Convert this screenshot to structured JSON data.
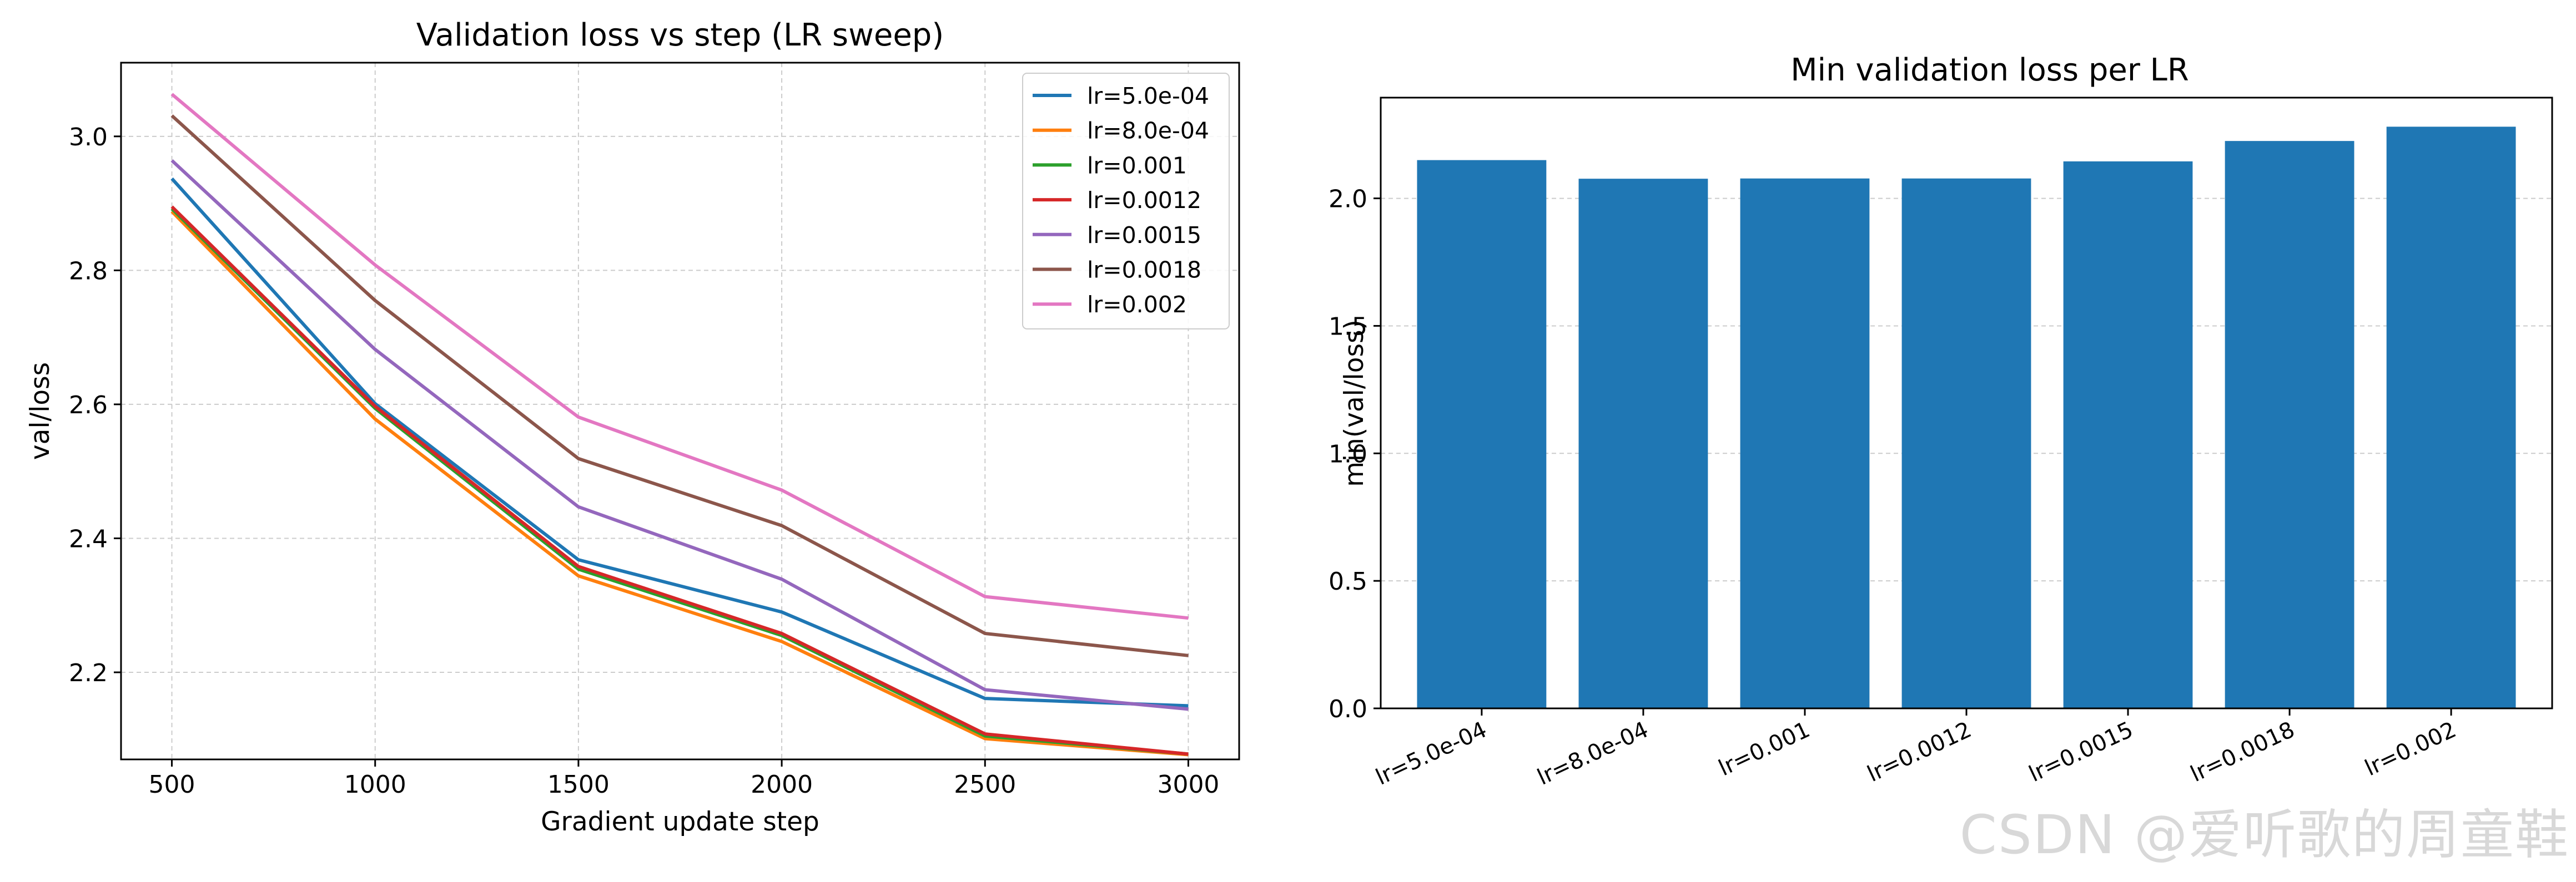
{
  "chart_data": [
    {
      "type": "line",
      "title": "Validation loss vs step (LR sweep)",
      "xlabel": "Gradient update step",
      "ylabel": "val/loss",
      "x": [
        500,
        1000,
        1500,
        2000,
        2500,
        3000
      ],
      "xlim": [
        375,
        3125
      ],
      "ylim": [
        2.07,
        3.11
      ],
      "xticks": [
        500,
        1000,
        1500,
        2000,
        2500,
        3000
      ],
      "yticks": [
        2.2,
        2.4,
        2.6,
        2.8,
        3.0
      ],
      "ytick_labels": [
        "2.2",
        "2.4",
        "2.6",
        "2.8",
        "3.0"
      ],
      "grid": true,
      "legend_position": "top-right",
      "series": [
        {
          "name": "lr=5.0e-04",
          "color": "#1f77b4",
          "values": [
            2.937,
            2.601,
            2.368,
            2.29,
            2.161,
            2.15
          ]
        },
        {
          "name": "lr=8.0e-04",
          "color": "#ff7f0e",
          "values": [
            2.888,
            2.578,
            2.344,
            2.246,
            2.101,
            2.077
          ]
        },
        {
          "name": "lr=0.001",
          "color": "#2ca02c",
          "values": [
            2.892,
            2.594,
            2.354,
            2.255,
            2.105,
            2.078
          ]
        },
        {
          "name": "lr=0.0012",
          "color": "#d62728",
          "values": [
            2.895,
            2.597,
            2.358,
            2.258,
            2.108,
            2.078
          ]
        },
        {
          "name": "lr=0.0015",
          "color": "#9467bd",
          "values": [
            2.964,
            2.682,
            2.447,
            2.339,
            2.174,
            2.145
          ]
        },
        {
          "name": "lr=0.0018",
          "color": "#8c564b",
          "values": [
            3.031,
            2.755,
            2.519,
            2.419,
            2.258,
            2.225
          ]
        },
        {
          "name": "lr=0.002",
          "color": "#e377c2",
          "values": [
            3.063,
            2.808,
            2.581,
            2.472,
            2.313,
            2.281
          ]
        }
      ]
    },
    {
      "type": "bar",
      "title": "Min validation loss per LR",
      "xlabel": "",
      "ylabel": "min(val/loss)",
      "categories": [
        "lr=5.0e-04",
        "lr=8.0e-04",
        "lr=0.001",
        "lr=0.0012",
        "lr=0.0015",
        "lr=0.0018",
        "lr=0.002"
      ],
      "values": [
        2.15,
        2.077,
        2.078,
        2.078,
        2.145,
        2.225,
        2.281
      ],
      "ylim": [
        0,
        2.395
      ],
      "yticks": [
        0,
        0.5,
        1.0,
        1.5,
        2.0
      ],
      "ytick_labels": [
        "0.0",
        "0.5",
        "1.0",
        "1.5",
        "2.0"
      ],
      "bar_color": "#1f77b4",
      "grid": true
    }
  ],
  "watermark": "CSDN @爱听歌的周童鞋"
}
